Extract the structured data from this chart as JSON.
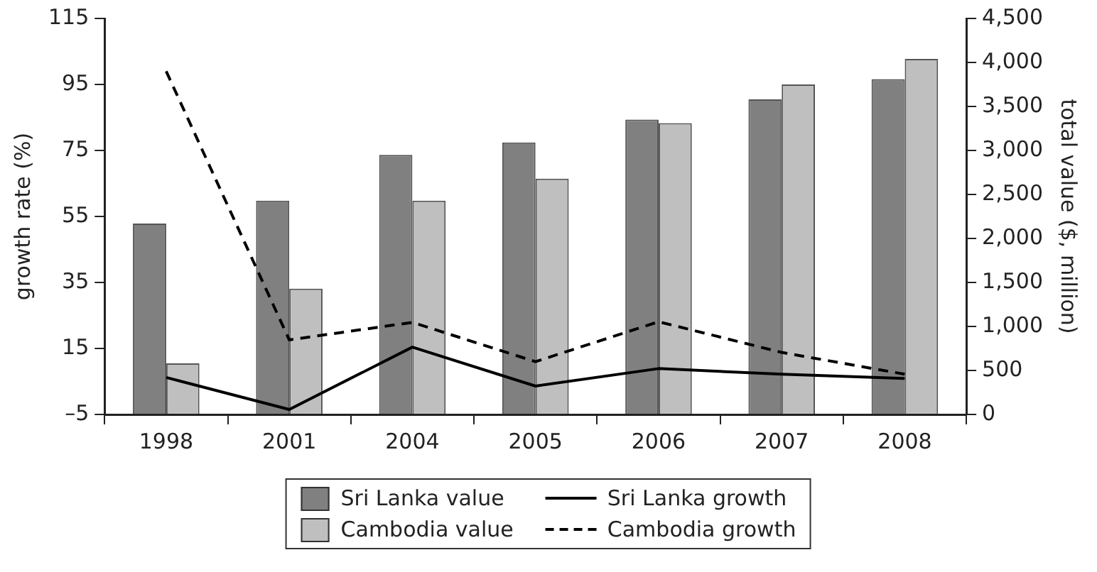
{
  "chart_data": {
    "type": "bar",
    "categories": [
      "1998",
      "2001",
      "2004",
      "2005",
      "2006",
      "2007",
      "2008"
    ],
    "ylabel": "growth rate (%)",
    "y2label": "total value ($, million)",
    "ylim": [
      -5,
      115
    ],
    "yticks": [
      {
        "value": -5,
        "label": "–5"
      },
      15,
      35,
      55,
      75,
      95,
      115
    ],
    "y2lim": [
      0,
      4500
    ],
    "y2ticks": [
      0,
      500,
      {
        "value": 1000,
        "label": "1,000"
      },
      {
        "value": 1500,
        "label": "1,500"
      },
      {
        "value": 2000,
        "label": "2,000"
      },
      {
        "value": 2500,
        "label": "2,500"
      },
      {
        "value": 3000,
        "label": "3,000"
      },
      {
        "value": 3500,
        "label": "3,500"
      },
      {
        "value": 4000,
        "label": "4,000"
      },
      {
        "value": 4500,
        "label": "4,500"
      }
    ],
    "series": [
      {
        "name": "Sri Lanka value",
        "axis": "y2",
        "color": "#808080",
        "values": [
          2170,
          2430,
          2950,
          3090,
          3350,
          3580,
          3810
        ]
      },
      {
        "name": "Cambodia value",
        "axis": "y2",
        "color": "#bfbfbf",
        "values": [
          580,
          1430,
          2430,
          2680,
          3310,
          3750,
          4040
        ]
      },
      {
        "name": "Sri Lanka growth",
        "type": "line",
        "axis": "y",
        "color": "#000000",
        "line_style": "solid",
        "values": [
          6.2,
          -3.5,
          15.4,
          3.6,
          8.9,
          7.2,
          5.9
        ]
      },
      {
        "name": "Cambodia growth",
        "type": "line",
        "axis": "y",
        "color": "#000000",
        "line_style": "dashed",
        "values": [
          99,
          17.6,
          22.9,
          11,
          23.1,
          13.8,
          7.2
        ]
      }
    ],
    "marker": "none",
    "grid": false,
    "legend": "bottom"
  }
}
